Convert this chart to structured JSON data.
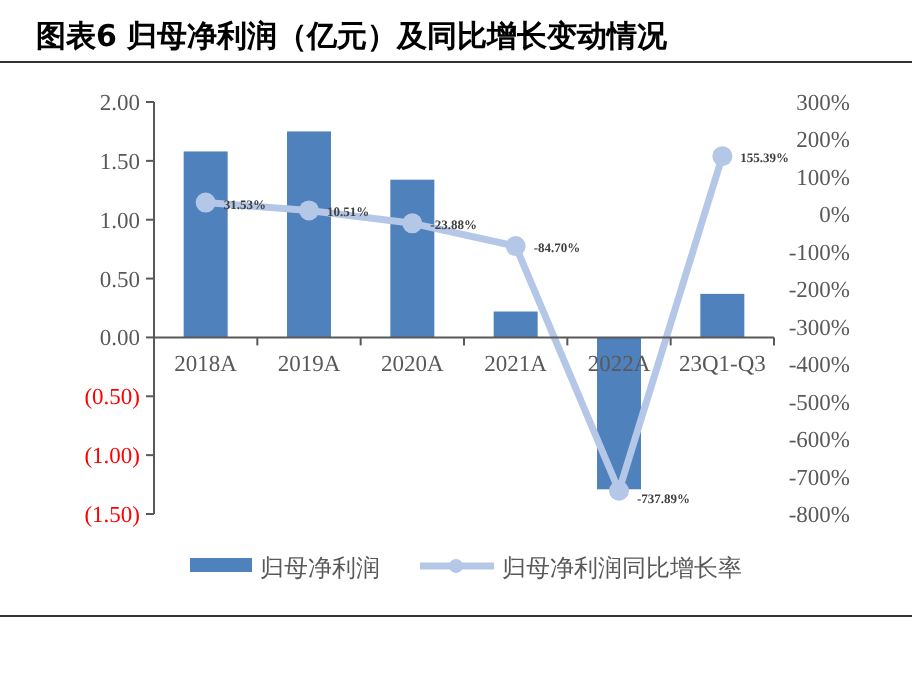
{
  "chart_data": {
    "type": "bar",
    "title": "图表6  归母净利润（亿元）及同比增长变动情况",
    "categories": [
      "2018A",
      "2019A",
      "2020A",
      "2021A",
      "2022A",
      "23Q1-Q3"
    ],
    "series": [
      {
        "name": "归母净利润",
        "color": "#4f81bd",
        "values": [
          1.58,
          1.75,
          1.34,
          0.22,
          -1.29,
          0.37
        ]
      },
      {
        "name": "归母净利润同比增长率",
        "type": "line",
        "axis": "y2",
        "color": "#b4c7e7",
        "values": [
          31.53,
          10.51,
          -23.88,
          -84.7,
          -737.89,
          155.39
        ],
        "value_labels": [
          "31.53%",
          "10.51%",
          "-23.88%",
          "-84.70%",
          "-737.89%",
          "155.39%"
        ]
      }
    ],
    "marker": "circle",
    "ylim": [
      -1.5,
      2
    ],
    "yticks": [
      {
        "value": 2,
        "label": "2.00"
      },
      {
        "value": 1.5,
        "label": "1.50"
      },
      {
        "value": 1,
        "label": "1.00"
      },
      {
        "value": 0.5,
        "label": "0.50"
      },
      {
        "value": 0,
        "label": "0.00"
      },
      {
        "value": -0.5,
        "label": "(0.50)"
      },
      {
        "value": -1,
        "label": "(1.00)"
      },
      {
        "value": -1.5,
        "label": "(1.50)"
      }
    ],
    "y2lim": [
      -800,
      300
    ],
    "y2ticks": [
      {
        "value": 300,
        "label": "300%"
      },
      {
        "value": 200,
        "label": "200%"
      },
      {
        "value": 100,
        "label": "100%"
      },
      {
        "value": 0,
        "label": "0%"
      },
      {
        "value": -100,
        "label": "-100%"
      },
      {
        "value": -200,
        "label": "-200%"
      },
      {
        "value": -300,
        "label": "-300%"
      },
      {
        "value": -400,
        "label": "-400%"
      },
      {
        "value": -500,
        "label": "-500%"
      },
      {
        "value": -600,
        "label": "-600%"
      },
      {
        "value": -700,
        "label": "-700%"
      },
      {
        "value": -800,
        "label": "-800%"
      }
    ],
    "legend": "bottom"
  }
}
